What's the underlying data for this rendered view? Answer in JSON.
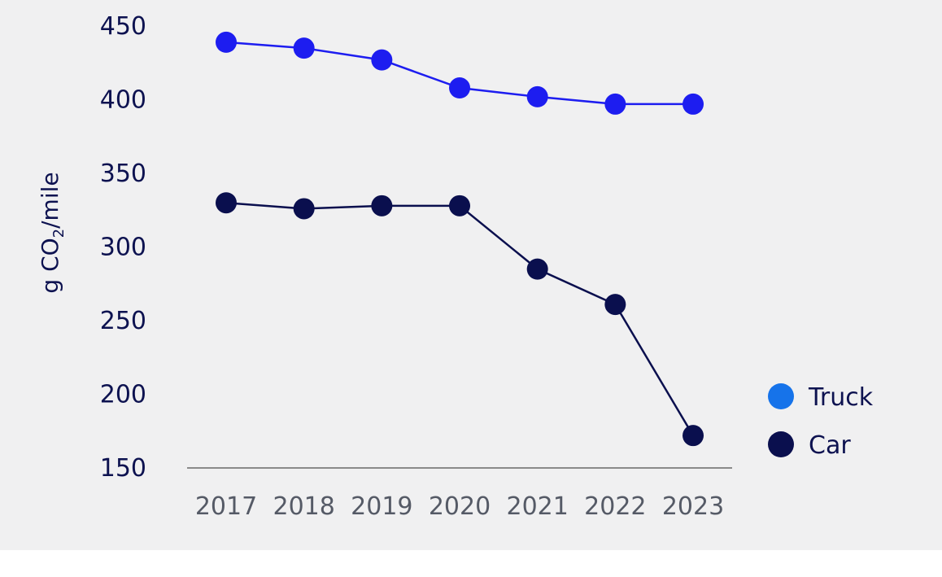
{
  "chart_data": {
    "type": "line",
    "x": [
      "2017",
      "2018",
      "2019",
      "2020",
      "2021",
      "2022",
      "2023"
    ],
    "series": [
      {
        "name": "Truck",
        "values": [
          439,
          435,
          427,
          408,
          402,
          397,
          397
        ],
        "color": "#1d1df0",
        "legend_color": "#1673ea"
      },
      {
        "name": "Car",
        "values": [
          330,
          326,
          328,
          328,
          285,
          261,
          172
        ],
        "color": "#0a0f4e",
        "legend_color": "#0a0f4e"
      }
    ],
    "ylabel": {
      "text": "g CO",
      "subscript": "2",
      "suffix": "/mile"
    },
    "yticks": [
      "150",
      "200",
      "250",
      "300",
      "350",
      "400",
      "450"
    ],
    "ylim": [
      150,
      450
    ],
    "grid": false,
    "legend_position": "right"
  }
}
